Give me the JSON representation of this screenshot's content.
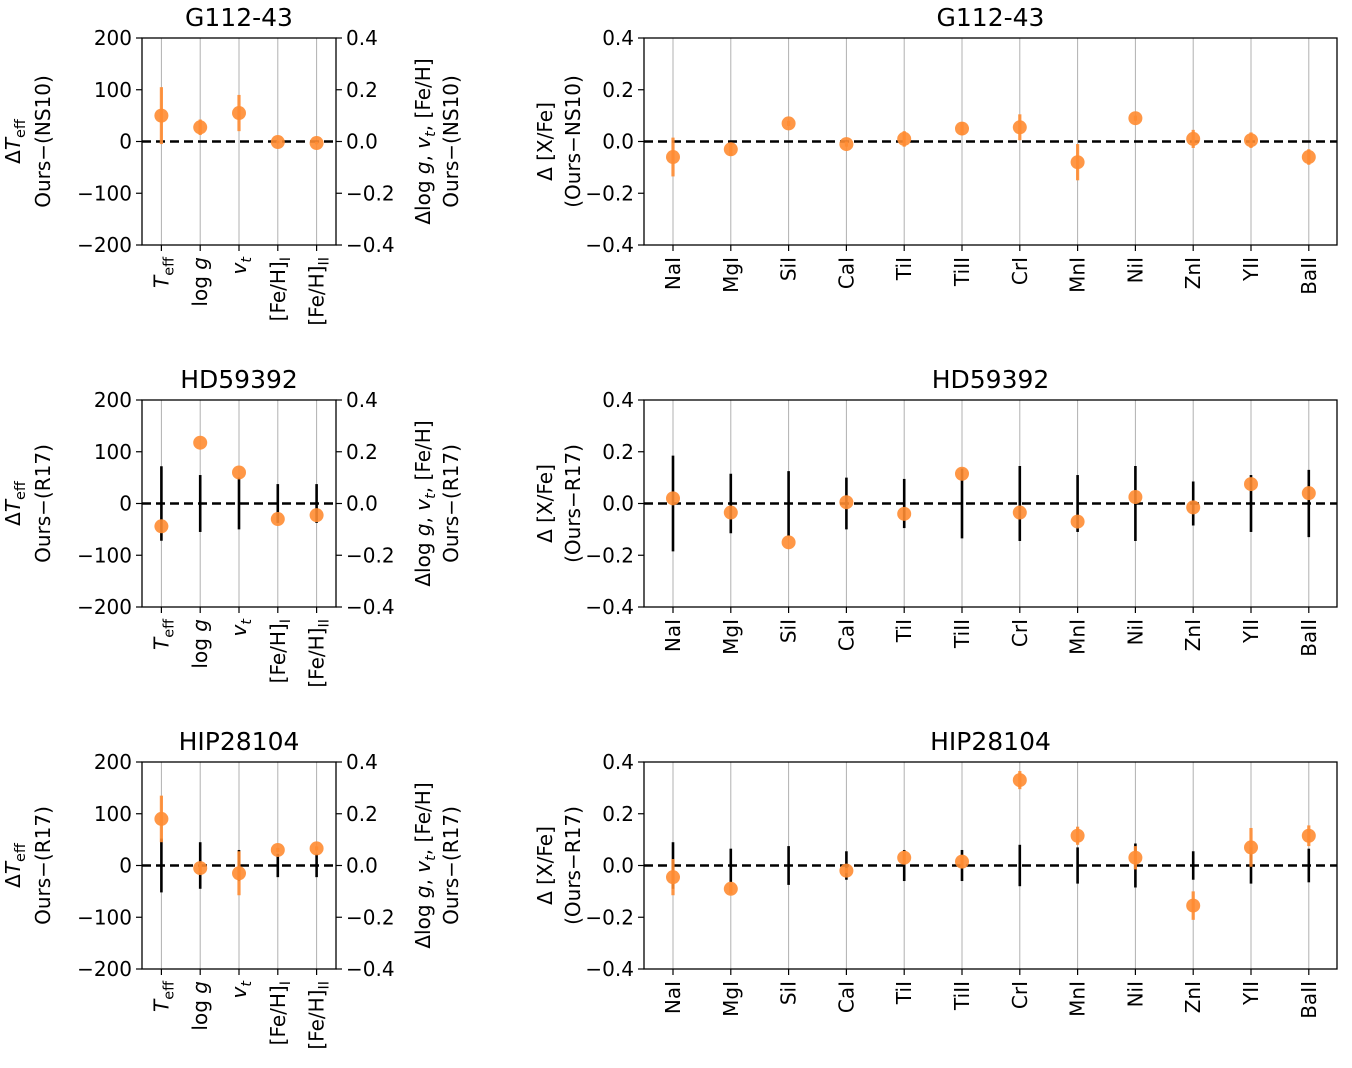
{
  "colors": {
    "ours": "#ff8c32",
    "ref": "#000000",
    "grid": "#b0b0b0",
    "zero_line": "#000000"
  },
  "param_labels": [
    "T_eff",
    "log g",
    "v_t",
    "[Fe/H]_I",
    "[Fe/H]_II"
  ],
  "element_labels": [
    "NaI",
    "MgI",
    "SiI",
    "CaI",
    "TiI",
    "TiII",
    "CrI",
    "MnI",
    "NiI",
    "ZnI",
    "YII",
    "BaII"
  ],
  "chart_data": [
    {
      "type": "scatter",
      "title": "G112-43",
      "ylabel": "ΔT_eff Ours−(NS10)",
      "ylabel_right": "Δlog g, v_t, [Fe/H] Ours−(NS10)",
      "ylim_left": [
        -200,
        200
      ],
      "ylim_right": [
        -0.4,
        0.4
      ],
      "yticks_left": [
        "200",
        "100",
        "0",
        "−100",
        "−200"
      ],
      "yticks_right": [
        "0.4",
        "0.2",
        "0.0",
        "−0.2",
        "−0.4"
      ],
      "categories": [
        "T_eff",
        "log g",
        "v_t",
        "[Fe/H]_I",
        "[Fe/H]_II"
      ],
      "ours_values": [
        50,
        0.055,
        0.11,
        -0.002,
        -0.006
      ],
      "ours_errors": [
        55,
        0.03,
        0.07,
        0.005,
        0.005
      ],
      "ref_errors": [
        0,
        0,
        0,
        0,
        0
      ]
    },
    {
      "type": "scatter",
      "title": "G112-43",
      "ylabel": "Δ [X/Fe] (Ours−NS10)",
      "ylim": [
        -0.4,
        0.4
      ],
      "yticks": [
        "0.4",
        "0.2",
        "0.0",
        "−0.2",
        "−0.4"
      ],
      "categories": [
        "NaI",
        "MgI",
        "SiI",
        "CaI",
        "TiI",
        "TiII",
        "CrI",
        "MnI",
        "NiI",
        "ZnI",
        "YII",
        "BaII"
      ],
      "ours_values": [
        -0.06,
        -0.03,
        0.07,
        -0.01,
        0.01,
        0.05,
        0.055,
        -0.08,
        0.09,
        0.01,
        0.005,
        -0.06
      ],
      "ours_errors": [
        0.075,
        0.025,
        0.01,
        0.01,
        0.03,
        0.025,
        0.05,
        0.07,
        0.01,
        0.035,
        0.03,
        0.03
      ],
      "ref_errors": [
        0,
        0,
        0,
        0,
        0,
        0,
        0,
        0,
        0,
        0,
        0,
        0
      ]
    },
    {
      "type": "scatter",
      "title": "HD59392",
      "ylabel": "ΔT_eff Ours−(R17)",
      "ylabel_right": "Δlog g, v_t, [Fe/H] Ours−(R17)",
      "ylim_left": [
        -200,
        200
      ],
      "ylim_right": [
        -0.4,
        0.4
      ],
      "yticks_left": [
        "200",
        "100",
        "0",
        "−100",
        "−200"
      ],
      "yticks_right": [
        "0.4",
        "0.2",
        "0.0",
        "−0.2",
        "−0.4"
      ],
      "categories": [
        "T_eff",
        "log g",
        "v_t",
        "[Fe/H]_I",
        "[Fe/H]_II"
      ],
      "ours_values": [
        -44,
        0.235,
        0.12,
        -0.06,
        -0.045
      ],
      "ours_errors": [
        0,
        0,
        0,
        0,
        0
      ],
      "ref_errors": [
        72,
        0.11,
        0.1,
        0.075,
        0.075
      ]
    },
    {
      "type": "scatter",
      "title": "HD59392",
      "ylabel": "Δ [X/Fe] (Ours−R17)",
      "ylim": [
        -0.4,
        0.4
      ],
      "yticks": [
        "0.4",
        "0.2",
        "0.0",
        "−0.2",
        "−0.4"
      ],
      "categories": [
        "NaI",
        "MgI",
        "SiI",
        "CaI",
        "TiI",
        "TiII",
        "CrI",
        "MnI",
        "NiI",
        "ZnI",
        "YII",
        "BaII"
      ],
      "ours_values": [
        0.02,
        -0.035,
        -0.15,
        0.005,
        -0.04,
        0.115,
        -0.035,
        -0.07,
        0.025,
        -0.015,
        0.075,
        0.04
      ],
      "ours_errors": [
        0,
        0,
        0,
        0,
        0,
        0,
        0,
        0,
        0,
        0,
        0,
        0
      ],
      "ref_errors": [
        0.185,
        0.115,
        0.125,
        0.1,
        0.095,
        0.135,
        0.145,
        0.11,
        0.145,
        0.085,
        0.11,
        0.13
      ]
    },
    {
      "type": "scatter",
      "title": "HIP28104",
      "ylabel": "ΔT_eff Ours−(R17)",
      "ylabel_right": "Δlog g, v_t, [Fe/H] Ours−(R17)",
      "ylim_left": [
        -200,
        200
      ],
      "ylim_right": [
        -0.4,
        0.4
      ],
      "yticks_left": [
        "200",
        "100",
        "0",
        "−100",
        "−200"
      ],
      "yticks_right": [
        "0.4",
        "0.2",
        "0.0",
        "−0.2",
        "−0.4"
      ],
      "categories": [
        "T_eff",
        "log g",
        "v_t",
        "[Fe/H]_I",
        "[Fe/H]_II"
      ],
      "ours_values": [
        90,
        -0.01,
        -0.03,
        0.06,
        0.066
      ],
      "ours_errors": [
        45,
        0.02,
        0.085,
        0.008,
        0.008
      ],
      "ref_errors": [
        52,
        0.09,
        0.06,
        0.045,
        0.045
      ]
    },
    {
      "type": "scatter",
      "title": "HIP28104",
      "ylabel": "Δ [X/Fe] (Ours−R17)",
      "ylim": [
        -0.4,
        0.4
      ],
      "yticks": [
        "0.4",
        "0.2",
        "0.0",
        "−0.2",
        "−0.4"
      ],
      "categories": [
        "NaI",
        "MgI",
        "SiI",
        "CaI",
        "TiI",
        "TiII",
        "CrI",
        "MnI",
        "NiI",
        "ZnI",
        "YII",
        "BaII"
      ],
      "ours_values": [
        -0.045,
        -0.09,
        null,
        -0.02,
        0.03,
        0.015,
        0.33,
        0.115,
        0.03,
        -0.155,
        0.07,
        0.115
      ],
      "ours_errors": [
        0.07,
        0.02,
        0,
        0.01,
        0.025,
        0.025,
        0.035,
        0.035,
        0.045,
        0.055,
        0.075,
        0.04
      ],
      "ref_errors": [
        0.09,
        0.065,
        0.075,
        0.055,
        0.06,
        0.06,
        0.08,
        0.07,
        0.085,
        0.055,
        0.07,
        0.065
      ]
    }
  ]
}
